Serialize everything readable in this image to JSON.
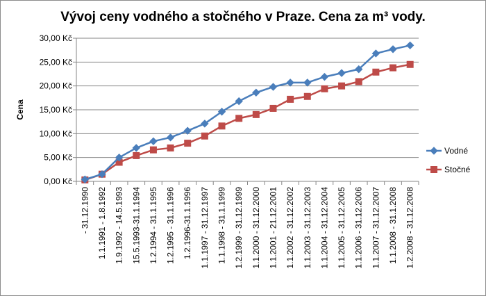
{
  "chart_data": {
    "type": "line",
    "title": "Vývoj ceny vodného a stočného v Praze. Cena za m³ vody.",
    "xlabel": "",
    "ylabel": "Cena",
    "ylim": [
      0,
      30
    ],
    "y_ticks": [
      "0,00 Kč",
      "5,00 Kč",
      "10,00 Kč",
      "15,00 Kč",
      "20,00 Kč",
      "25,00 Kč",
      "30,00 Kč"
    ],
    "grid": true,
    "legend_position": "right",
    "categories": [
      "- 31.12.1990",
      "1.1.1991 - 1.8.1992",
      "1.9.1992 - 14.5.1993",
      "15.5.1993-31.1.1994",
      "1.2.1994 - 31.1.1995",
      "1.2.1995 - 31.1.1996",
      "1.2.1996-31.1.1996",
      "1.1.1997 - 31.12.1997",
      "1.1.1998 - 31.1.1999",
      "1.2.1999 - 31.12.1999",
      "1.1.2000 - 31.12.2000",
      "1.1.2001 - 21.12.2001",
      "1.1.2002 - 31.12.2002",
      "1.1.2003 - 31.12.2003",
      "1.1.2004 - 31.12.2004",
      "1.1.2005 - 31.12.2005",
      "1.1.2006 - 31.12.2006",
      "1.1.2007 - 31.12.2007",
      "1.1.2008 - 31.1.2008",
      "1.2.2008 - 31.12.2008"
    ],
    "series": [
      {
        "name": "Vodné",
        "color": "#4a7ebb",
        "marker": "diamond",
        "values": [
          0.4,
          1.5,
          5.0,
          7.0,
          8.4,
          9.2,
          10.6,
          12.1,
          14.6,
          16.8,
          18.6,
          19.8,
          20.7,
          20.7,
          21.9,
          22.7,
          23.5,
          26.8,
          27.7,
          28.5
        ]
      },
      {
        "name": "Stočné",
        "color": "#be4b48",
        "marker": "square",
        "values": [
          0.3,
          1.5,
          4.0,
          5.4,
          6.6,
          7.0,
          8.0,
          9.5,
          11.6,
          13.2,
          14.0,
          15.3,
          17.2,
          17.8,
          19.4,
          20.0,
          20.9,
          22.9,
          23.8,
          24.5
        ]
      }
    ]
  }
}
